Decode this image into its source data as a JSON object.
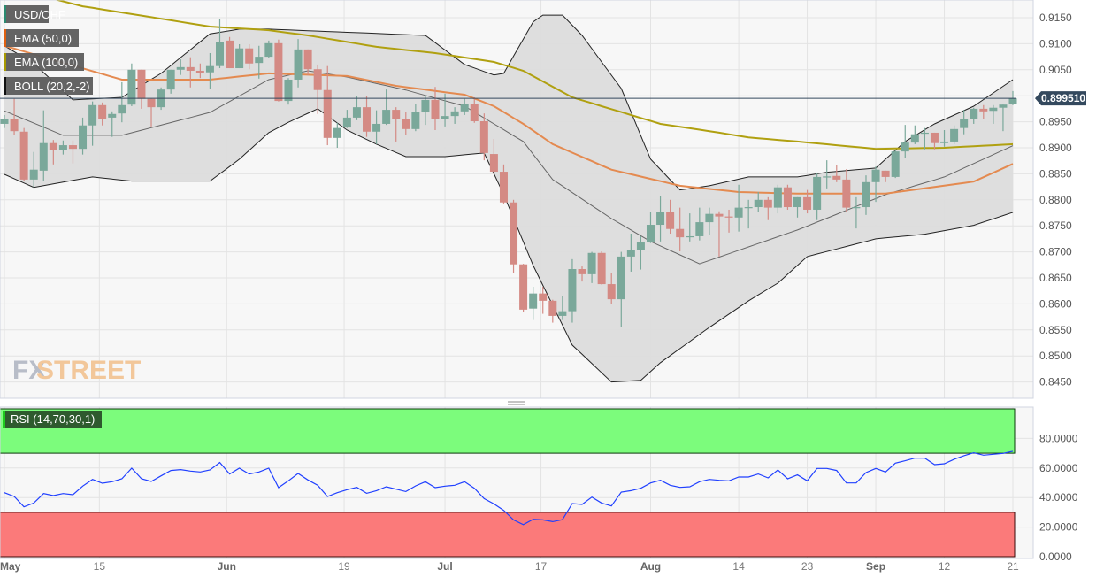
{
  "legend": [
    {
      "label": "USD/CHF",
      "color": "#2a8a70"
    },
    {
      "label": "EMA (50,0)",
      "color": "#e06010"
    },
    {
      "label": "EMA (100,0)",
      "color": "#a89a00"
    },
    {
      "label": "BOLL (20,2,-2)",
      "color": "#111111"
    }
  ],
  "rsi_label": "RSI (14,70,30,1)",
  "watermark": {
    "fx": "FX",
    "street": "STREET"
  },
  "colors": {
    "up": "#7aa89a",
    "down": "#d48a84",
    "ema50": "#e48a50",
    "ema100": "#b0a010",
    "boll": "#222222",
    "boll_mid": "#666666",
    "band": "#dcdcdc",
    "rsi_line": "#2040ff",
    "overbought": "#7cfc7c",
    "oversold": "#fb7a7a",
    "price_tag": "#34495e"
  },
  "chart_data": [
    {
      "type": "candlestick",
      "title": "USD/CHF",
      "ylim": [
        0.842,
        0.918
      ],
      "yticks": [
        "0.9150",
        "0.9100",
        "0.9050",
        "0.9000",
        "0.8950",
        "0.8900",
        "0.8850",
        "0.8800",
        "0.8750",
        "0.8700",
        "0.8650",
        "0.8600",
        "0.8550",
        "0.8500",
        "0.8450"
      ],
      "ytick_labels_shown": [
        "0.9150",
        "0.9100",
        "0.9050",
        "0.8950",
        "0.8900",
        "0.8850",
        "0.8800",
        "0.8750",
        "0.8700",
        "0.8650",
        "0.8600",
        "0.8550",
        "0.8500",
        "0.8450"
      ],
      "current_price": "0.899510",
      "xlabels": [
        {
          "label": "May",
          "index": 0,
          "major": true
        },
        {
          "label": "15",
          "index": 9.7,
          "major": false
        },
        {
          "label": "Jun",
          "index": 22.7,
          "major": true
        },
        {
          "label": "19",
          "index": 34.7,
          "major": false
        },
        {
          "label": "Jul",
          "index": 45,
          "major": true
        },
        {
          "label": "17",
          "index": 54.8,
          "major": false
        },
        {
          "label": "Aug",
          "index": 66,
          "major": true
        },
        {
          "label": "14",
          "index": 75,
          "major": false
        },
        {
          "label": "23",
          "index": 82,
          "major": false
        },
        {
          "label": "Sep",
          "index": 89,
          "major": true
        },
        {
          "label": "12",
          "index": 96,
          "major": false
        },
        {
          "label": "21",
          "index": 103,
          "major": false
        }
      ],
      "ohlc_format": [
        "open",
        "high",
        "low",
        "close"
      ],
      "candles": [
        [
          0.8946,
          0.8963,
          0.8938,
          0.8955
        ],
        [
          0.8955,
          0.8994,
          0.8924,
          0.8932
        ],
        [
          0.8931,
          0.8938,
          0.8836,
          0.8839
        ],
        [
          0.8839,
          0.8892,
          0.8824,
          0.8858
        ],
        [
          0.8856,
          0.8972,
          0.8836,
          0.8909
        ],
        [
          0.8909,
          0.8915,
          0.8868,
          0.8895
        ],
        [
          0.8895,
          0.8914,
          0.8887,
          0.8905
        ],
        [
          0.8905,
          0.8914,
          0.887,
          0.8898
        ],
        [
          0.8898,
          0.8958,
          0.8887,
          0.8943
        ],
        [
          0.8943,
          0.8989,
          0.8904,
          0.8982
        ],
        [
          0.8982,
          0.8987,
          0.8943,
          0.8956
        ],
        [
          0.8958,
          0.897,
          0.8921,
          0.8965
        ],
        [
          0.8966,
          0.9026,
          0.8949,
          0.8982
        ],
        [
          0.8983,
          0.9062,
          0.898,
          0.905
        ],
        [
          0.905,
          0.905,
          0.8975,
          0.8994
        ],
        [
          0.8994,
          0.8994,
          0.8941,
          0.8978
        ],
        [
          0.8978,
          0.9016,
          0.8973,
          0.9012
        ],
        [
          0.9012,
          0.905,
          0.9004,
          0.905
        ],
        [
          0.905,
          0.907,
          0.904,
          0.9055
        ],
        [
          0.9055,
          0.9074,
          0.9016,
          0.9048
        ],
        [
          0.9048,
          0.9062,
          0.9034,
          0.9043
        ],
        [
          0.9045,
          0.9082,
          0.9014,
          0.9057
        ],
        [
          0.9057,
          0.9147,
          0.9053,
          0.9104
        ],
        [
          0.9106,
          0.9113,
          0.9053,
          0.9053
        ],
        [
          0.9053,
          0.9099,
          0.9053,
          0.9091
        ],
        [
          0.9091,
          0.9099,
          0.9051,
          0.9062
        ],
        [
          0.9063,
          0.9096,
          0.9033,
          0.9075
        ],
        [
          0.9075,
          0.9106,
          0.9072,
          0.9101
        ],
        [
          0.9101,
          0.9108,
          0.8989,
          0.899
        ],
        [
          0.899,
          0.9034,
          0.8983,
          0.9031
        ],
        [
          0.9031,
          0.9109,
          0.9016,
          0.9089
        ],
        [
          0.9089,
          0.9089,
          0.904,
          0.9051
        ],
        [
          0.9051,
          0.906,
          0.8965,
          0.9011
        ],
        [
          0.9011,
          0.9057,
          0.8905,
          0.8919
        ],
        [
          0.8919,
          0.8948,
          0.89,
          0.8938
        ],
        [
          0.8939,
          0.8973,
          0.8938,
          0.8958
        ],
        [
          0.8958,
          0.8999,
          0.8953,
          0.8978
        ],
        [
          0.8978,
          0.8999,
          0.8921,
          0.8931
        ],
        [
          0.8931,
          0.8972,
          0.8907,
          0.8946
        ],
        [
          0.8946,
          0.9012,
          0.8944,
          0.8973
        ],
        [
          0.8973,
          0.8978,
          0.8912,
          0.8956
        ],
        [
          0.8956,
          0.8968,
          0.8924,
          0.8936
        ],
        [
          0.8936,
          0.8985,
          0.8932,
          0.8968
        ],
        [
          0.8968,
          0.9,
          0.8944,
          0.8992
        ],
        [
          0.8992,
          0.9017,
          0.8934,
          0.8955
        ],
        [
          0.8955,
          0.9004,
          0.8941,
          0.8961
        ],
        [
          0.8961,
          0.8978,
          0.8946,
          0.897
        ],
        [
          0.897,
          0.8994,
          0.8963,
          0.8985
        ],
        [
          0.8985,
          0.8997,
          0.8948,
          0.8951
        ],
        [
          0.8951,
          0.8966,
          0.8876,
          0.889
        ],
        [
          0.8888,
          0.8917,
          0.8849,
          0.8854
        ],
        [
          0.8854,
          0.8868,
          0.8793,
          0.8795
        ],
        [
          0.8795,
          0.88,
          0.866,
          0.8676
        ],
        [
          0.8676,
          0.8677,
          0.8584,
          0.8589
        ],
        [
          0.8591,
          0.8633,
          0.8569,
          0.862
        ],
        [
          0.862,
          0.8633,
          0.8581,
          0.8606
        ],
        [
          0.8606,
          0.8608,
          0.8564,
          0.8577
        ],
        [
          0.8577,
          0.8615,
          0.8569,
          0.8586
        ],
        [
          0.8586,
          0.8686,
          0.8564,
          0.8667
        ],
        [
          0.8667,
          0.8672,
          0.8643,
          0.8657
        ],
        [
          0.8657,
          0.87,
          0.864,
          0.8698
        ],
        [
          0.8698,
          0.8701,
          0.8637,
          0.8638
        ],
        [
          0.8638,
          0.8659,
          0.8599,
          0.8609
        ],
        [
          0.8609,
          0.87,
          0.8555,
          0.8691
        ],
        [
          0.8691,
          0.8735,
          0.8662,
          0.8703
        ],
        [
          0.8703,
          0.873,
          0.8666,
          0.8718
        ],
        [
          0.8718,
          0.8776,
          0.8717,
          0.8752
        ],
        [
          0.8752,
          0.8807,
          0.872,
          0.8776
        ],
        [
          0.8776,
          0.88,
          0.8735,
          0.8744
        ],
        [
          0.8744,
          0.8785,
          0.8701,
          0.8728
        ],
        [
          0.8728,
          0.8774,
          0.872,
          0.873
        ],
        [
          0.873,
          0.8785,
          0.8722,
          0.8757
        ],
        [
          0.8757,
          0.8785,
          0.8732,
          0.8773
        ],
        [
          0.8773,
          0.8778,
          0.8691,
          0.8768
        ],
        [
          0.8768,
          0.8781,
          0.8737,
          0.8766
        ],
        [
          0.8766,
          0.8829,
          0.8739,
          0.8785
        ],
        [
          0.8785,
          0.88,
          0.8745,
          0.8786
        ],
        [
          0.8786,
          0.8815,
          0.8776,
          0.88
        ],
        [
          0.88,
          0.8805,
          0.8761,
          0.8785
        ],
        [
          0.8785,
          0.8829,
          0.8774,
          0.8824
        ],
        [
          0.8824,
          0.8829,
          0.8781,
          0.8786
        ],
        [
          0.8786,
          0.8805,
          0.8766,
          0.8805
        ],
        [
          0.8805,
          0.8819,
          0.8774,
          0.8781
        ],
        [
          0.8781,
          0.8852,
          0.8761,
          0.8844
        ],
        [
          0.8844,
          0.8876,
          0.8822,
          0.8845
        ],
        [
          0.8846,
          0.8866,
          0.8834,
          0.8839
        ],
        [
          0.8839,
          0.8859,
          0.8776,
          0.8785
        ],
        [
          0.8785,
          0.8805,
          0.8745,
          0.8786
        ],
        [
          0.8786,
          0.8847,
          0.8771,
          0.8834
        ],
        [
          0.8834,
          0.8864,
          0.8796,
          0.8858
        ],
        [
          0.8856,
          0.8856,
          0.8834,
          0.8844
        ],
        [
          0.8844,
          0.8895,
          0.8842,
          0.8893
        ],
        [
          0.8893,
          0.8944,
          0.8881,
          0.891
        ],
        [
          0.891,
          0.8943,
          0.8907,
          0.8926
        ],
        [
          0.8927,
          0.8938,
          0.8897,
          0.8929
        ],
        [
          0.8929,
          0.8929,
          0.8897,
          0.8909
        ],
        [
          0.8909,
          0.8934,
          0.8902,
          0.8912
        ],
        [
          0.8912,
          0.8943,
          0.8907,
          0.8936
        ],
        [
          0.8938,
          0.8973,
          0.8926,
          0.8956
        ],
        [
          0.8956,
          0.8977,
          0.8946,
          0.8975
        ],
        [
          0.8975,
          0.8982,
          0.8956,
          0.897
        ],
        [
          0.8971,
          0.8982,
          0.8946,
          0.8977
        ],
        [
          0.8977,
          0.8983,
          0.8932,
          0.8983
        ],
        [
          0.8985,
          0.9009,
          0.8982,
          0.89951
        ]
      ],
      "series_points_format": [
        "candle_index",
        "value"
      ],
      "ema100": [
        [
          0,
          0.921
        ],
        [
          8,
          0.9172
        ],
        [
          21,
          0.9133
        ],
        [
          27,
          0.9126
        ],
        [
          31,
          0.9116
        ],
        [
          38,
          0.9094
        ],
        [
          44,
          0.9082
        ],
        [
          50,
          0.9065
        ],
        [
          53,
          0.9048
        ],
        [
          58,
          0.8997
        ],
        [
          67,
          0.8946
        ],
        [
          72,
          0.8932
        ],
        [
          76,
          0.892
        ],
        [
          81,
          0.8912
        ],
        [
          89,
          0.8898
        ],
        [
          96,
          0.89
        ],
        [
          103,
          0.8907
        ]
      ],
      "ema50": [
        [
          0,
          0.9096
        ],
        [
          12,
          0.9031
        ],
        [
          21,
          0.9031
        ],
        [
          27,
          0.9043
        ],
        [
          35,
          0.9038
        ],
        [
          40,
          0.9019
        ],
        [
          47,
          0.9002
        ],
        [
          50,
          0.898
        ],
        [
          53,
          0.8946
        ],
        [
          56,
          0.8907
        ],
        [
          62,
          0.8858
        ],
        [
          69,
          0.8827
        ],
        [
          75,
          0.8815
        ],
        [
          81,
          0.8812
        ],
        [
          90,
          0.8812
        ],
        [
          99,
          0.8835
        ],
        [
          103,
          0.8869
        ]
      ],
      "boll_upper": [
        [
          0,
          0.9096
        ],
        [
          3,
          0.9062
        ],
        [
          7,
          0.8992
        ],
        [
          12,
          0.8997
        ],
        [
          16,
          0.9043
        ],
        [
          21,
          0.9119
        ],
        [
          24,
          0.9128
        ],
        [
          27,
          0.9128
        ],
        [
          43,
          0.9116
        ],
        [
          47,
          0.906
        ],
        [
          50,
          0.904
        ],
        [
          51,
          0.9043
        ],
        [
          54,
          0.9142
        ],
        [
          55,
          0.9155
        ],
        [
          57,
          0.9155
        ],
        [
          59,
          0.9116
        ],
        [
          63,
          0.9014
        ],
        [
          66,
          0.8878
        ],
        [
          69,
          0.8819
        ],
        [
          72,
          0.8827
        ],
        [
          76,
          0.8844
        ],
        [
          81,
          0.8844
        ],
        [
          84,
          0.8853
        ],
        [
          89,
          0.8861
        ],
        [
          92,
          0.8912
        ],
        [
          95,
          0.8946
        ],
        [
          99,
          0.898
        ],
        [
          103,
          0.9031
        ]
      ],
      "boll_middle": [
        [
          0,
          0.8971
        ],
        [
          6,
          0.8924
        ],
        [
          12,
          0.8924
        ],
        [
          21,
          0.8968
        ],
        [
          27,
          0.9031
        ],
        [
          31,
          0.9048
        ],
        [
          35,
          0.9036
        ],
        [
          41,
          0.9011
        ],
        [
          47,
          0.898
        ],
        [
          50,
          0.8946
        ],
        [
          53,
          0.8912
        ],
        [
          56,
          0.8839
        ],
        [
          62,
          0.8764
        ],
        [
          66,
          0.872
        ],
        [
          71,
          0.8677
        ],
        [
          75,
          0.8703
        ],
        [
          81,
          0.8742
        ],
        [
          90,
          0.881
        ],
        [
          96,
          0.8844
        ],
        [
          103,
          0.8904
        ]
      ],
      "boll_lower": [
        [
          0,
          0.8849
        ],
        [
          3,
          0.8824
        ],
        [
          9,
          0.8844
        ],
        [
          13,
          0.8836
        ],
        [
          21,
          0.8836
        ],
        [
          24,
          0.8878
        ],
        [
          27,
          0.8929
        ],
        [
          29,
          0.8949
        ],
        [
          32,
          0.8975
        ],
        [
          35,
          0.8934
        ],
        [
          38,
          0.8907
        ],
        [
          41,
          0.8883
        ],
        [
          45,
          0.8883
        ],
        [
          49,
          0.889
        ],
        [
          51,
          0.881
        ],
        [
          54,
          0.8674
        ],
        [
          58,
          0.8521
        ],
        [
          62,
          0.845
        ],
        [
          65,
          0.8453
        ],
        [
          67,
          0.8487
        ],
        [
          72,
          0.8555
        ],
        [
          76,
          0.8606
        ],
        [
          79,
          0.864
        ],
        [
          82,
          0.8691
        ],
        [
          89,
          0.8725
        ],
        [
          94,
          0.8734
        ],
        [
          99,
          0.8751
        ],
        [
          103,
          0.8776
        ]
      ]
    },
    {
      "type": "line",
      "title": "RSI (14,70,30,1)",
      "ylim": [
        0,
        100
      ],
      "yticks": [
        "80.0000",
        "60.0000",
        "40.0000",
        "20.0000",
        "0.0000"
      ],
      "overbought": 70,
      "oversold": 30,
      "rsi": [
        43.3,
        40.7,
        33.7,
        36.3,
        42.7,
        41.3,
        42.7,
        41.9,
        47.7,
        52.3,
        49.7,
        50.7,
        52.7,
        59.9,
        52.7,
        50.9,
        54.7,
        58.3,
        58.9,
        57.9,
        57.3,
        58.7,
        63.7,
        55.9,
        59.9,
        55.9,
        57.3,
        59.9,
        46.7,
        51.3,
        56.3,
        51.9,
        48.3,
        40.7,
        43.3,
        45.3,
        46.9,
        42.9,
        44.7,
        47.3,
        45.7,
        44.1,
        47.9,
        50.7,
        46.7,
        47.7,
        48.3,
        50.7,
        46.3,
        39.3,
        35.7,
        31.3,
        24.9,
        21.7,
        25.3,
        24.9,
        23.7,
        25.1,
        35.9,
        35.3,
        40.3,
        36.3,
        34.3,
        43.7,
        44.7,
        46.3,
        49.9,
        51.7,
        48.3,
        46.9,
        47.3,
        50.7,
        52.3,
        51.7,
        51.3,
        53.9,
        53.9,
        55.9,
        53.3,
        58.7,
        52.7,
        55.3,
        51.3,
        59.7,
        59.7,
        58.3,
        49.9,
        49.9,
        56.9,
        59.7,
        57.3,
        63.3,
        64.9,
        66.7,
        66.7,
        62.3,
        62.9,
        65.9,
        68.3,
        70.3,
        68.7,
        69.3,
        69.9,
        71.3
      ]
    }
  ]
}
